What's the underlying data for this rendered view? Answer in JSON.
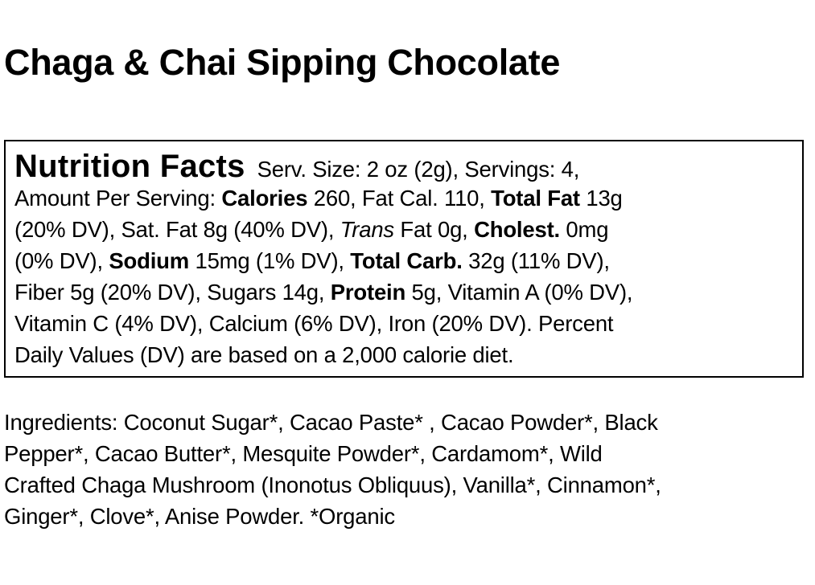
{
  "title": "Chaga & Chai Sipping Chocolate",
  "nutrition_facts": {
    "lines": [
      [
        {
          "t": "Nutrition Facts",
          "s": "h"
        },
        {
          "t": "  Serv. Size: 2 oz (2g), Servings: 4,"
        }
      ],
      [
        {
          "t": "Amount Per Serving: "
        },
        {
          "t": "Calories",
          "s": "b"
        },
        {
          "t": " 260, Fat Cal. 110, "
        },
        {
          "t": "Total Fat",
          "s": "b"
        },
        {
          "t": " 13g"
        }
      ],
      [
        {
          "t": "(20% DV), Sat. Fat 8g (40% DV), "
        },
        {
          "t": "Trans",
          "s": "i"
        },
        {
          "t": " Fat 0g, "
        },
        {
          "t": "Cholest.",
          "s": "b"
        },
        {
          "t": " 0mg"
        }
      ],
      [
        {
          "t": "(0% DV), "
        },
        {
          "t": "Sodium",
          "s": "b"
        },
        {
          "t": " 15mg (1% DV), "
        },
        {
          "t": "Total Carb.",
          "s": "b"
        },
        {
          "t": " 32g (11% DV),"
        }
      ],
      [
        {
          "t": "Fiber 5g (20% DV), Sugars 14g, "
        },
        {
          "t": "Protein",
          "s": "b"
        },
        {
          "t": " 5g, Vitamin A (0% DV),"
        }
      ],
      [
        {
          "t": "Vitamin C (4% DV), Calcium (6% DV), Iron (20% DV). Percent"
        }
      ],
      [
        {
          "t": "Daily Values (DV) are based on a 2,000 calorie diet."
        }
      ]
    ]
  },
  "ingredients": {
    "lines": [
      [
        {
          "t": "Ingredients: Coconut Sugar*, Cacao Paste* , Cacao Powder*, Black"
        }
      ],
      [
        {
          "t": "Pepper*, Cacao Butter*, Mesquite Powder*, Cardamom*, Wild"
        }
      ],
      [
        {
          "t": "Crafted Chaga Mushroom (Inonotus Obliquus), Vanilla*, Cinnamon*,"
        }
      ],
      [
        {
          "t": "Ginger*, Clove*, Anise Powder. *Organic"
        }
      ]
    ]
  }
}
